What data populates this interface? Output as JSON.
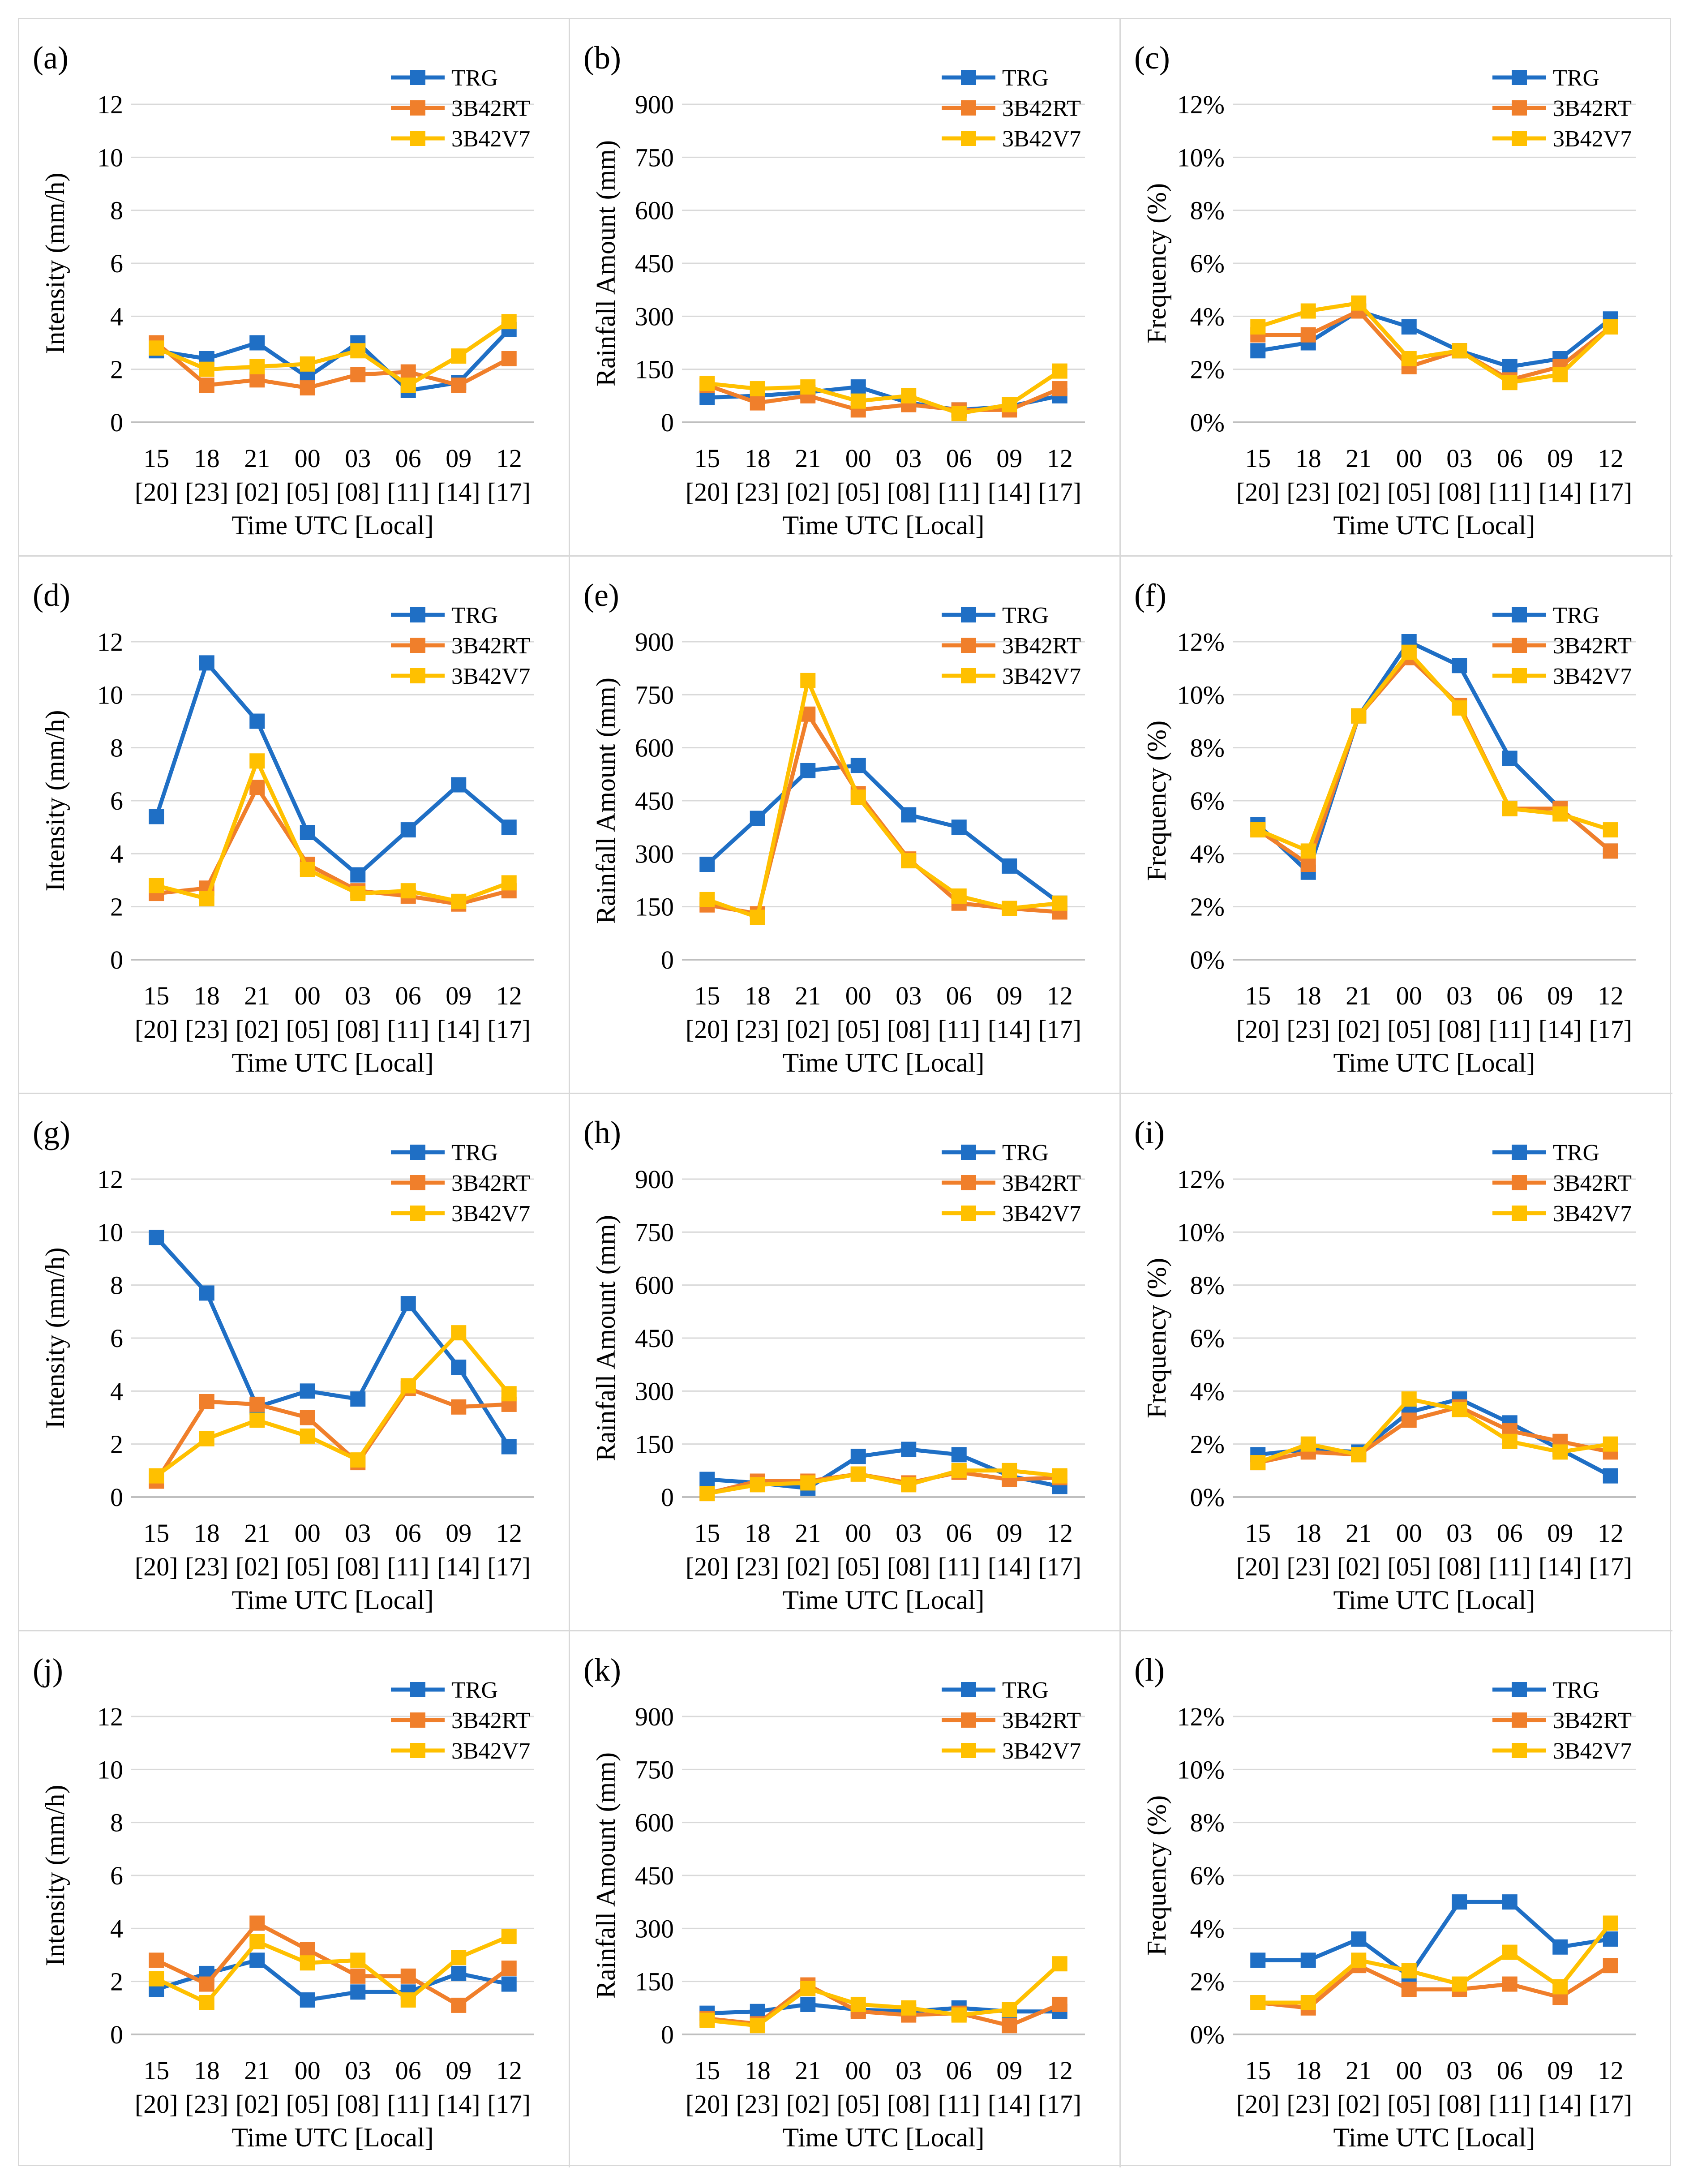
{
  "colors": {
    "TRG": "#1f6fc5",
    "3B42RT": "#f07f2b",
    "3B42V7": "#ffc000",
    "grid": "#d9d9d9",
    "axis": "#bfbfbf",
    "text": "#000000"
  },
  "chart_data": [
    {
      "type": "line",
      "panel_label": "(a)",
      "ylabel": "Intensity (mm/h)",
      "xlabel": "Time UTC [Local]",
      "categories": [
        "15",
        "18",
        "21",
        "00",
        "03",
        "06",
        "09",
        "12"
      ],
      "categories_local": [
        "[20]",
        "[23]",
        "[02]",
        "[05]",
        "[08]",
        "[11]",
        "[14]",
        "[17]"
      ],
      "ylim": [
        0,
        12
      ],
      "yticks": [
        "0",
        "2",
        "4",
        "6",
        "8",
        "10",
        "12"
      ],
      "series": [
        {
          "name": "TRG",
          "values": [
            2.7,
            2.4,
            3.0,
            1.7,
            3.0,
            1.2,
            1.5,
            3.5
          ]
        },
        {
          "name": "3B42RT",
          "values": [
            3.0,
            1.4,
            1.6,
            1.3,
            1.8,
            1.9,
            1.4,
            2.4
          ]
        },
        {
          "name": "3B42V7",
          "values": [
            2.8,
            2.0,
            2.1,
            2.2,
            2.7,
            1.4,
            2.5,
            3.8
          ]
        }
      ]
    },
    {
      "type": "line",
      "panel_label": "(b)",
      "ylabel": "Rainfall Amount (mm)",
      "xlabel": "Time UTC [Local]",
      "categories": [
        "15",
        "18",
        "21",
        "00",
        "03",
        "06",
        "09",
        "12"
      ],
      "categories_local": [
        "[20]",
        "[23]",
        "[02]",
        "[05]",
        "[08]",
        "[11]",
        "[14]",
        "[17]"
      ],
      "ylim": [
        0,
        900
      ],
      "yticks": [
        "0",
        "150",
        "300",
        "450",
        "600",
        "750",
        "900"
      ],
      "series": [
        {
          "name": "TRG",
          "values": [
            70,
            75,
            85,
            100,
            55,
            35,
            45,
            75
          ]
        },
        {
          "name": "3B42RT",
          "values": [
            105,
            55,
            75,
            35,
            50,
            35,
            35,
            95
          ]
        },
        {
          "name": "3B42V7",
          "values": [
            110,
            95,
            100,
            60,
            75,
            25,
            50,
            145
          ]
        }
      ]
    },
    {
      "type": "line",
      "panel_label": "(c)",
      "ylabel": "Frequency (%)",
      "xlabel": "Time UTC [Local]",
      "categories": [
        "15",
        "18",
        "21",
        "00",
        "03",
        "06",
        "09",
        "12"
      ],
      "categories_local": [
        "[20]",
        "[23]",
        "[02]",
        "[05]",
        "[08]",
        "[11]",
        "[14]",
        "[17]"
      ],
      "ylim": [
        0,
        12
      ],
      "yticks": [
        "0%",
        "2%",
        "4%",
        "6%",
        "8%",
        "10%",
        "12%"
      ],
      "series": [
        {
          "name": "TRG",
          "values": [
            2.7,
            3.0,
            4.2,
            3.6,
            2.7,
            2.1,
            2.4,
            3.9
          ]
        },
        {
          "name": "3B42RT",
          "values": [
            3.3,
            3.3,
            4.2,
            2.1,
            2.7,
            1.6,
            2.1,
            3.6
          ]
        },
        {
          "name": "3B42V7",
          "values": [
            3.6,
            4.2,
            4.5,
            2.4,
            2.7,
            1.5,
            1.8,
            3.6
          ]
        }
      ]
    },
    {
      "type": "line",
      "panel_label": "(d)",
      "ylabel": "Intensity (mm/h)",
      "xlabel": "Time UTC [Local]",
      "categories": [
        "15",
        "18",
        "21",
        "00",
        "03",
        "06",
        "09",
        "12"
      ],
      "categories_local": [
        "[20]",
        "[23]",
        "[02]",
        "[05]",
        "[08]",
        "[11]",
        "[14]",
        "[17]"
      ],
      "ylim": [
        0,
        12
      ],
      "yticks": [
        "0",
        "2",
        "4",
        "6",
        "8",
        "10",
        "12"
      ],
      "series": [
        {
          "name": "TRG",
          "values": [
            5.4,
            11.2,
            9.0,
            4.8,
            3.2,
            4.9,
            6.6,
            5.0
          ]
        },
        {
          "name": "3B42RT",
          "values": [
            2.5,
            2.7,
            6.5,
            3.6,
            2.6,
            2.4,
            2.1,
            2.6
          ]
        },
        {
          "name": "3B42V7",
          "values": [
            2.8,
            2.3,
            7.5,
            3.4,
            2.5,
            2.6,
            2.2,
            2.9
          ]
        }
      ]
    },
    {
      "type": "line",
      "panel_label": "(e)",
      "ylabel": "Rainfall Amount (mm)",
      "xlabel": "Time UTC [Local]",
      "categories": [
        "15",
        "18",
        "21",
        "00",
        "03",
        "06",
        "09",
        "12"
      ],
      "categories_local": [
        "[20]",
        "[23]",
        "[02]",
        "[05]",
        "[08]",
        "[11]",
        "[14]",
        "[17]"
      ],
      "ylim": [
        0,
        900
      ],
      "yticks": [
        "0",
        "150",
        "300",
        "450",
        "600",
        "750",
        "900"
      ],
      "series": [
        {
          "name": "TRG",
          "values": [
            270,
            400,
            535,
            550,
            410,
            375,
            265,
            160
          ]
        },
        {
          "name": "3B42RT",
          "values": [
            155,
            130,
            695,
            470,
            285,
            160,
            145,
            135
          ]
        },
        {
          "name": "3B42V7",
          "values": [
            170,
            120,
            790,
            460,
            280,
            180,
            145,
            160
          ]
        }
      ]
    },
    {
      "type": "line",
      "panel_label": "(f)",
      "ylabel": "Frequency (%)",
      "xlabel": "Time UTC [Local]",
      "categories": [
        "15",
        "18",
        "21",
        "00",
        "03",
        "06",
        "09",
        "12"
      ],
      "categories_local": [
        "[20]",
        "[23]",
        "[02]",
        "[05]",
        "[08]",
        "[11]",
        "[14]",
        "[17]"
      ],
      "ylim": [
        0,
        12
      ],
      "yticks": [
        "0%",
        "2%",
        "4%",
        "6%",
        "8%",
        "10%",
        "12%"
      ],
      "series": [
        {
          "name": "TRG",
          "values": [
            5.1,
            3.3,
            9.2,
            12.0,
            11.1,
            7.6,
            5.7,
            4.1
          ]
        },
        {
          "name": "3B42RT",
          "values": [
            4.9,
            3.6,
            9.2,
            11.4,
            9.6,
            5.7,
            5.7,
            4.1
          ]
        },
        {
          "name": "3B42V7",
          "values": [
            4.9,
            4.1,
            9.2,
            11.6,
            9.5,
            5.7,
            5.5,
            4.9
          ]
        }
      ]
    },
    {
      "type": "line",
      "panel_label": "(g)",
      "ylabel": "Intensity (mm/h)",
      "xlabel": "Time UTC [Local]",
      "categories": [
        "15",
        "18",
        "21",
        "00",
        "03",
        "06",
        "09",
        "12"
      ],
      "categories_local": [
        "[20]",
        "[23]",
        "[02]",
        "[05]",
        "[08]",
        "[11]",
        "[14]",
        "[17]"
      ],
      "ylim": [
        0,
        12
      ],
      "yticks": [
        "0",
        "2",
        "4",
        "6",
        "8",
        "10",
        "12"
      ],
      "series": [
        {
          "name": "TRG",
          "values": [
            9.8,
            7.7,
            3.4,
            4.0,
            3.7,
            7.3,
            4.9,
            1.9
          ]
        },
        {
          "name": "3B42RT",
          "values": [
            0.6,
            3.6,
            3.5,
            3.0,
            1.3,
            4.1,
            3.4,
            3.5
          ]
        },
        {
          "name": "3B42V7",
          "values": [
            0.8,
            2.2,
            2.9,
            2.3,
            1.4,
            4.2,
            6.2,
            3.9
          ]
        }
      ]
    },
    {
      "type": "line",
      "panel_label": "(h)",
      "ylabel": "Rainfall Amount (mm)",
      "xlabel": "Time UTC [Local]",
      "categories": [
        "15",
        "18",
        "21",
        "00",
        "03",
        "06",
        "09",
        "12"
      ],
      "categories_local": [
        "[20]",
        "[23]",
        "[02]",
        "[05]",
        "[08]",
        "[11]",
        "[14]",
        "[17]"
      ],
      "ylim": [
        0,
        900
      ],
      "yticks": [
        "0",
        "150",
        "300",
        "450",
        "600",
        "750",
        "900"
      ],
      "series": [
        {
          "name": "TRG",
          "values": [
            50,
            40,
            25,
            115,
            135,
            120,
            60,
            30
          ]
        },
        {
          "name": "3B42RT",
          "values": [
            10,
            45,
            45,
            65,
            40,
            70,
            50,
            55
          ]
        },
        {
          "name": "3B42V7",
          "values": [
            10,
            35,
            40,
            65,
            35,
            75,
            75,
            60
          ]
        }
      ]
    },
    {
      "type": "line",
      "panel_label": "(i)",
      "ylabel": "Frequency (%)",
      "xlabel": "Time UTC [Local]",
      "categories": [
        "15",
        "18",
        "21",
        "00",
        "03",
        "06",
        "09",
        "12"
      ],
      "categories_local": [
        "[20]",
        "[23]",
        "[02]",
        "[05]",
        "[08]",
        "[11]",
        "[14]",
        "[17]"
      ],
      "ylim": [
        0,
        12
      ],
      "yticks": [
        "0%",
        "2%",
        "4%",
        "6%",
        "8%",
        "10%",
        "12%"
      ],
      "series": [
        {
          "name": "TRG",
          "values": [
            1.6,
            1.8,
            1.7,
            3.2,
            3.7,
            2.8,
            1.8,
            0.8
          ]
        },
        {
          "name": "3B42RT",
          "values": [
            1.3,
            1.7,
            1.6,
            2.9,
            3.4,
            2.5,
            2.1,
            1.7
          ]
        },
        {
          "name": "3B42V7",
          "values": [
            1.3,
            2.0,
            1.6,
            3.7,
            3.3,
            2.1,
            1.7,
            2.0
          ]
        }
      ]
    },
    {
      "type": "line",
      "panel_label": "(j)",
      "ylabel": "Intensity (mm/h)",
      "xlabel": "Time UTC [Local]",
      "categories": [
        "15",
        "18",
        "21",
        "00",
        "03",
        "06",
        "09",
        "12"
      ],
      "categories_local": [
        "[20]",
        "[23]",
        "[02]",
        "[05]",
        "[08]",
        "[11]",
        "[14]",
        "[17]"
      ],
      "ylim": [
        0,
        12
      ],
      "yticks": [
        "0",
        "2",
        "4",
        "6",
        "8",
        "10",
        "12"
      ],
      "series": [
        {
          "name": "TRG",
          "values": [
            1.7,
            2.3,
            2.8,
            1.3,
            1.6,
            1.6,
            2.3,
            1.9
          ]
        },
        {
          "name": "3B42RT",
          "values": [
            2.8,
            1.9,
            4.2,
            3.2,
            2.2,
            2.2,
            1.1,
            2.5
          ]
        },
        {
          "name": "3B42V7",
          "values": [
            2.1,
            1.2,
            3.5,
            2.7,
            2.8,
            1.3,
            2.9,
            3.7
          ]
        }
      ]
    },
    {
      "type": "line",
      "panel_label": "(k)",
      "ylabel": "Rainfall Amount (mm)",
      "xlabel": "Time UTC [Local]",
      "categories": [
        "15",
        "18",
        "21",
        "00",
        "03",
        "06",
        "09",
        "12"
      ],
      "categories_local": [
        "[20]",
        "[23]",
        "[02]",
        "[05]",
        "[08]",
        "[11]",
        "[14]",
        "[17]"
      ],
      "ylim": [
        0,
        900
      ],
      "yticks": [
        "0",
        "150",
        "300",
        "450",
        "600",
        "750",
        "900"
      ],
      "series": [
        {
          "name": "TRG",
          "values": [
            60,
            65,
            85,
            70,
            65,
            75,
            65,
            65
          ]
        },
        {
          "name": "3B42RT",
          "values": [
            45,
            30,
            140,
            65,
            55,
            60,
            25,
            85
          ]
        },
        {
          "name": "3B42V7",
          "values": [
            40,
            25,
            130,
            85,
            75,
            55,
            70,
            200
          ]
        }
      ]
    },
    {
      "type": "line",
      "panel_label": "(l)",
      "ylabel": "Frequency (%)",
      "xlabel": "Time UTC [Local]",
      "categories": [
        "15",
        "18",
        "21",
        "00",
        "03",
        "06",
        "09",
        "12"
      ],
      "categories_local": [
        "[20]",
        "[23]",
        "[02]",
        "[05]",
        "[08]",
        "[11]",
        "[14]",
        "[17]"
      ],
      "ylim": [
        0,
        12
      ],
      "yticks": [
        "0%",
        "2%",
        "4%",
        "6%",
        "8%",
        "10%",
        "12%"
      ],
      "series": [
        {
          "name": "TRG",
          "values": [
            2.8,
            2.8,
            3.6,
            2.2,
            5.0,
            5.0,
            3.3,
            3.6
          ]
        },
        {
          "name": "3B42RT",
          "values": [
            1.2,
            1.0,
            2.6,
            1.7,
            1.7,
            1.9,
            1.4,
            2.6
          ]
        },
        {
          "name": "3B42V7",
          "values": [
            1.2,
            1.2,
            2.8,
            2.4,
            1.9,
            3.1,
            1.8,
            4.2
          ]
        }
      ]
    }
  ]
}
